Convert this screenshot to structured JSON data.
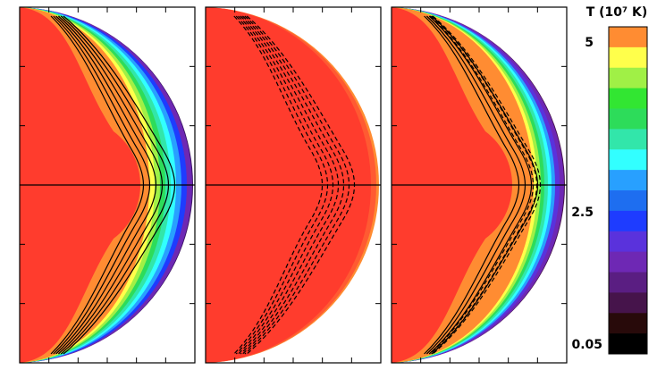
{
  "chart_data": {
    "type": "heatmap",
    "description_panels": [
      "left",
      "middle",
      "right"
    ],
    "colorbar": {
      "title": "T (10⁷ K)",
      "tick_labels": [
        "5",
        "2.5",
        "0.05"
      ],
      "colors": [
        "#ff8c32",
        "#ffff4b",
        "#a0f046",
        "#32e632",
        "#2ddc5a",
        "#32e6aa",
        "#32ffff",
        "#28a0ff",
        "#1e6ef0",
        "#1e3cff",
        "#5a32dc",
        "#6e28b4",
        "#5a1e82",
        "#46144b",
        "#280a0a",
        "#000000"
      ]
    },
    "colors": {
      "hot_fill": "#ff3c2d",
      "edge": "#000000",
      "frame": "#000000"
    },
    "panels": [
      {
        "name": "left",
        "contour_style": "solid"
      },
      {
        "name": "middle",
        "contour_style": "dashed"
      },
      {
        "name": "right",
        "contour_style": "solid+dashed"
      }
    ]
  }
}
